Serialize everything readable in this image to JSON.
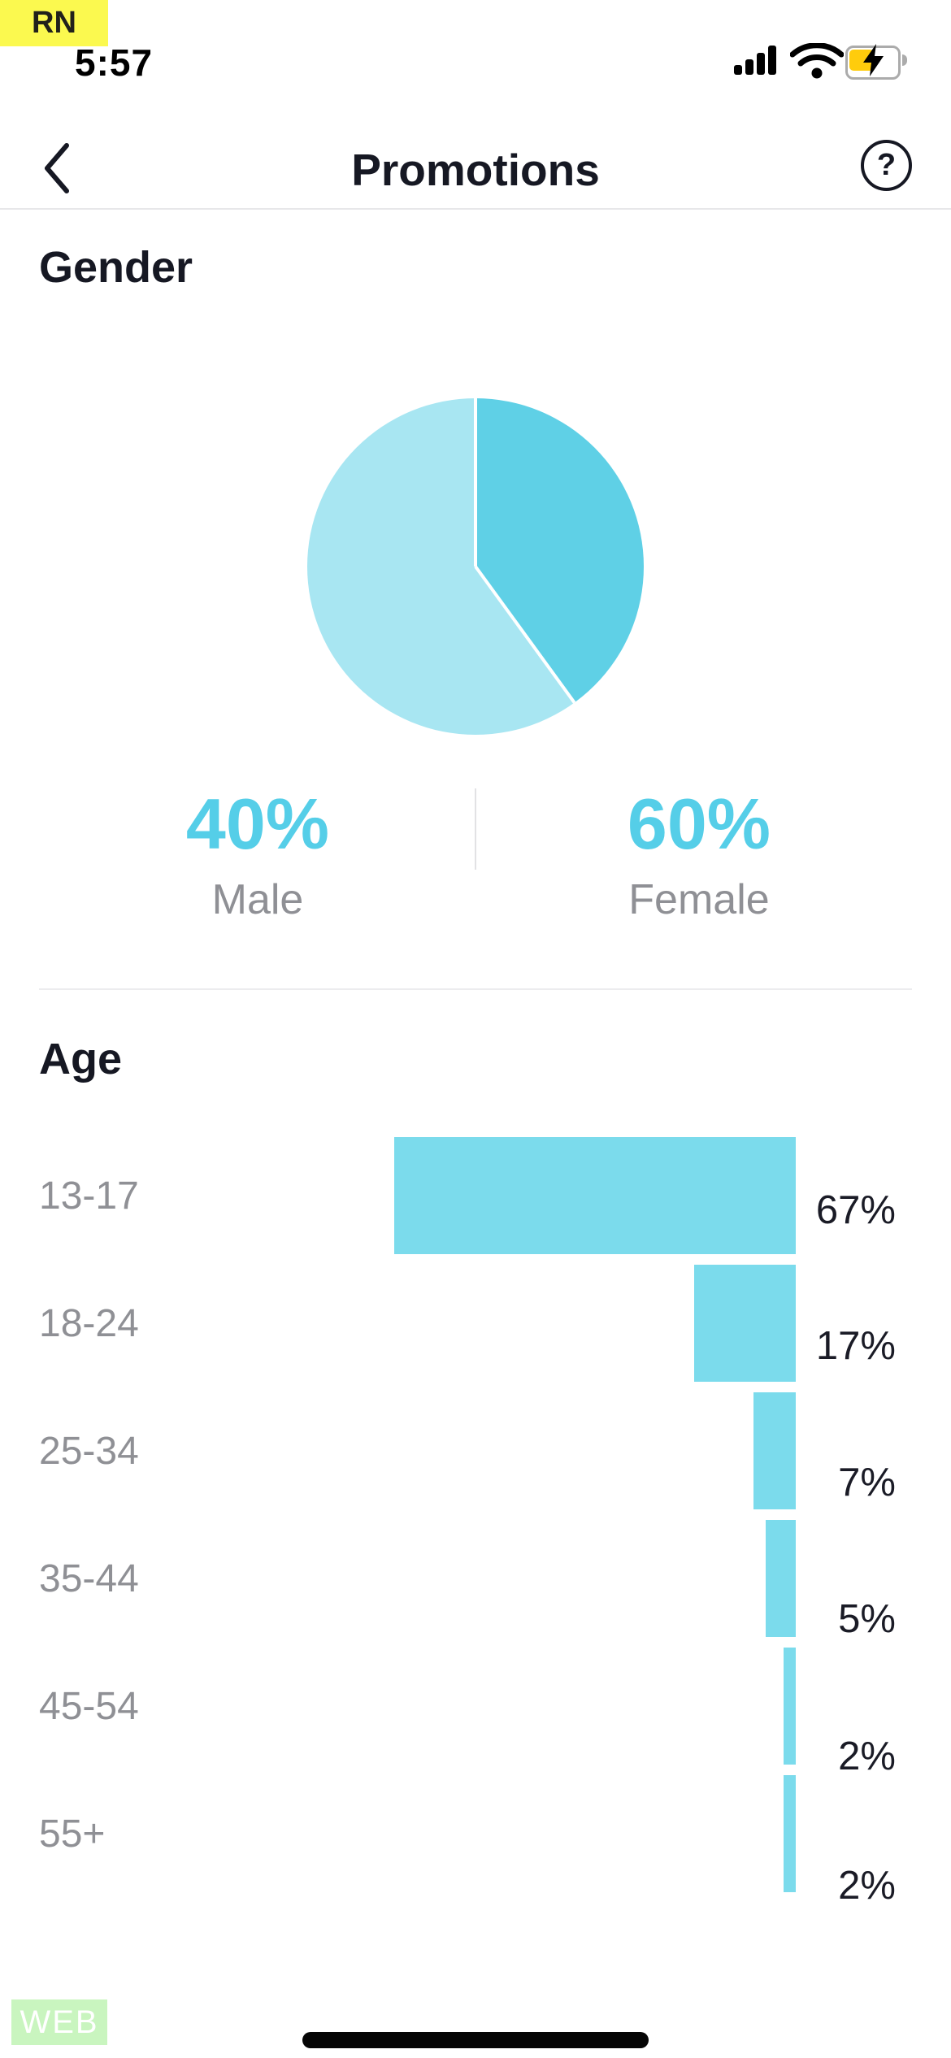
{
  "status_bar": {
    "env_badge": "RN",
    "time": "5:57",
    "icons": [
      "cellular-signal-icon",
      "wifi-icon",
      "battery-charging-icon"
    ]
  },
  "header": {
    "title": "Promotions",
    "back_icon": "chevron-left",
    "help_icon_glyph": "?"
  },
  "gender": {
    "heading": "Gender",
    "stats": [
      {
        "value": "40%",
        "label": "Male"
      },
      {
        "value": "60%",
        "label": "Female"
      }
    ]
  },
  "age": {
    "heading": "Age",
    "rows": [
      {
        "label": "13-17",
        "value": "67%"
      },
      {
        "label": "18-24",
        "value": "17%"
      },
      {
        "label": "25-34",
        "value": "7%"
      },
      {
        "label": "35-44",
        "value": "5%"
      },
      {
        "label": "45-54",
        "value": "2%"
      },
      {
        "label": "55+",
        "value": "2%"
      }
    ]
  },
  "footer": {
    "env_badge": "WEB"
  },
  "colors": {
    "accent_cyan_text": "#55CEE8",
    "pie_male": "#5FD0E6",
    "pie_female": "#A8E6F2",
    "bar_cyan": "#7BDBEC",
    "dark_text": "#161823",
    "gray_text": "#8F9095",
    "rn_badge_yellow": "#FBF94F",
    "web_badge_green": "#C9F5BF",
    "battery_yellow": "#FFCC0C"
  },
  "chart_data": [
    {
      "type": "pie",
      "title": "Gender",
      "slices": [
        {
          "label": "Male",
          "value": 40,
          "color": "#5FD0E6"
        },
        {
          "label": "Female",
          "value": 60,
          "color": "#A8E6F2"
        }
      ],
      "start_angle_deg": 0,
      "direction": "clockwise",
      "divider_color": "#ffffff"
    },
    {
      "type": "bar",
      "orientation": "horizontal",
      "title": "Age",
      "categories": [
        "13-17",
        "18-24",
        "25-34",
        "35-44",
        "45-54",
        "55+"
      ],
      "values": [
        67,
        17,
        7,
        5,
        2,
        2
      ],
      "unit": "%",
      "bar_color": "#7BDBEC",
      "xlim": [
        0,
        100
      ],
      "grid": false,
      "value_labels": "right-of-bar"
    }
  ]
}
